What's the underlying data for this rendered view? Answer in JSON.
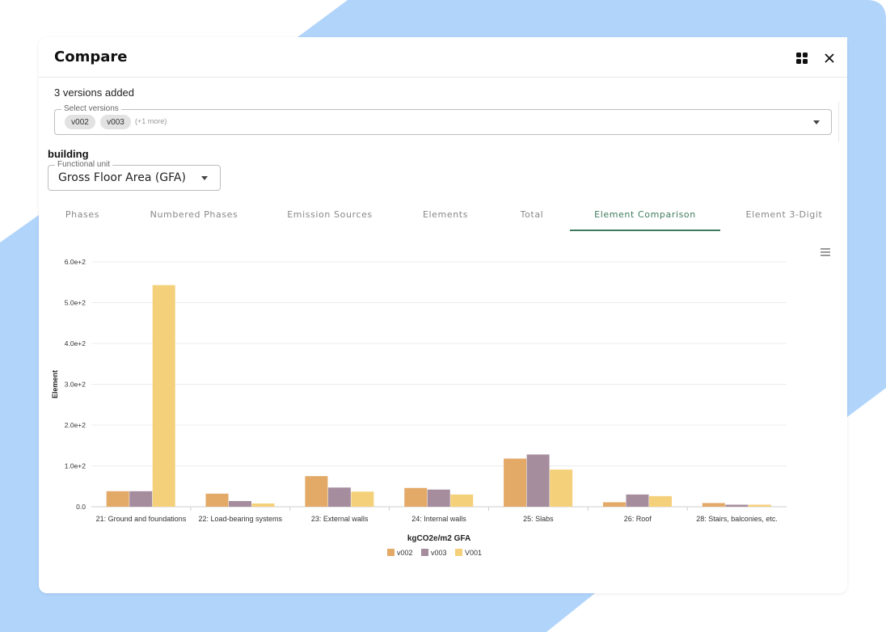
{
  "dialog": {
    "title": "Compare",
    "versions_added": "3 versions added",
    "select": {
      "legend": "Select versions",
      "chips": [
        "v002",
        "v003"
      ],
      "more": "(+1 more)"
    },
    "section_title": "building",
    "functional_unit": {
      "legend": "Functional unit",
      "value": "Gross Floor Area (GFA)"
    },
    "tabs": [
      {
        "label": "Phases"
      },
      {
        "label": "Numbered Phases"
      },
      {
        "label": "Emission Sources"
      },
      {
        "label": "Elements"
      },
      {
        "label": "Total"
      },
      {
        "label": "Element Comparison"
      },
      {
        "label": "Element 3-Digit"
      }
    ],
    "active_tab": "Element Comparison"
  },
  "colors": {
    "accent": "#3f7a5e",
    "bg_shape": "#b1d4fb",
    "series": [
      "#e3a967",
      "#a58d9e",
      "#f5d07a"
    ]
  },
  "chart_data": {
    "type": "bar",
    "categories": [
      "21: Ground and foundations",
      "22: Load-bearing systems",
      "23: External walls",
      "24: Internal walls",
      "25: Slabs",
      "26: Roof",
      "28: Stairs, balconies, etc."
    ],
    "series": [
      {
        "name": "v002",
        "values": [
          38,
          32,
          75,
          46,
          118,
          11,
          9
        ]
      },
      {
        "name": "v003",
        "values": [
          38,
          14,
          47,
          42,
          128,
          30,
          5
        ]
      },
      {
        "name": "V001",
        "values": [
          543,
          8,
          37,
          30,
          91,
          26,
          5
        ]
      }
    ],
    "ylim": [
      0,
      600
    ],
    "yticks": [
      "0.0",
      "1.0e+2",
      "2.0e+2",
      "3.0e+2",
      "4.0e+2",
      "5.0e+2",
      "6.0e+2"
    ],
    "ylabel": "Element",
    "xlabel": "kgCO2e/m2 GFA",
    "legend_position": "bottom"
  }
}
